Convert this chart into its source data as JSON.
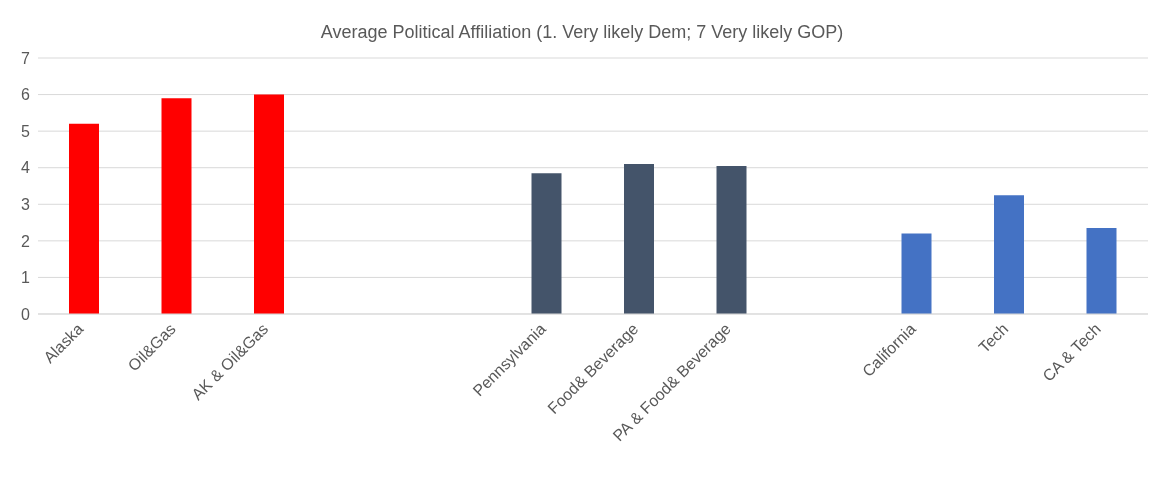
{
  "chart_data": {
    "type": "bar",
    "title": "Average Political Affiliation (1. Very likely Dem; 7 Very likely GOP)",
    "categories": [
      "Alaska",
      "Oil&Gas",
      "AK & Oil&Gas",
      null,
      null,
      "Pennsylvania",
      "Food& Beverage",
      "PA & Food& Beverage",
      null,
      "California",
      "Tech",
      "CA & Tech"
    ],
    "values": [
      5.2,
      5.9,
      6.0,
      null,
      null,
      3.85,
      4.1,
      4.05,
      null,
      2.2,
      3.25,
      2.35
    ],
    "colors": [
      "#ff0000",
      "#ff0000",
      "#ff0000",
      null,
      null,
      "#44546a",
      "#44546a",
      "#44546a",
      null,
      "#4472c4",
      "#4472c4",
      "#4472c4"
    ],
    "ylim": [
      0,
      7
    ],
    "yticks": [
      0,
      1,
      2,
      3,
      4,
      5,
      6,
      7
    ],
    "grid": "y"
  }
}
